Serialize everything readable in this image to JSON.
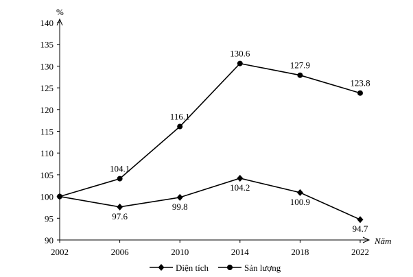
{
  "chart_data": {
    "type": "line",
    "title": "",
    "ylabel": "%",
    "xlabel": "Năm",
    "x": [
      2002,
      2006,
      2010,
      2014,
      2018,
      2022
    ],
    "ylim": [
      90,
      140
    ],
    "yticks": [
      90,
      95,
      100,
      105,
      110,
      115,
      120,
      125,
      130,
      135,
      140
    ],
    "grid": false,
    "legend_position": "bottom",
    "series": [
      {
        "name": "Diện tích",
        "marker": "diamond",
        "values": [
          100,
          97.6,
          99.8,
          104.2,
          100.9,
          94.7
        ],
        "labels": [
          "",
          "97.6",
          "99.8",
          "104.2",
          "100.9",
          "94.7"
        ]
      },
      {
        "name": "Sản lượng",
        "marker": "circle",
        "values": [
          100,
          104.1,
          116.1,
          130.6,
          127.9,
          123.8
        ],
        "labels": [
          "",
          "104.1",
          "116.1",
          "130.6",
          "127.9",
          "123.8"
        ]
      }
    ],
    "colors": {
      "line": "#000000",
      "axis": "#000000"
    }
  }
}
